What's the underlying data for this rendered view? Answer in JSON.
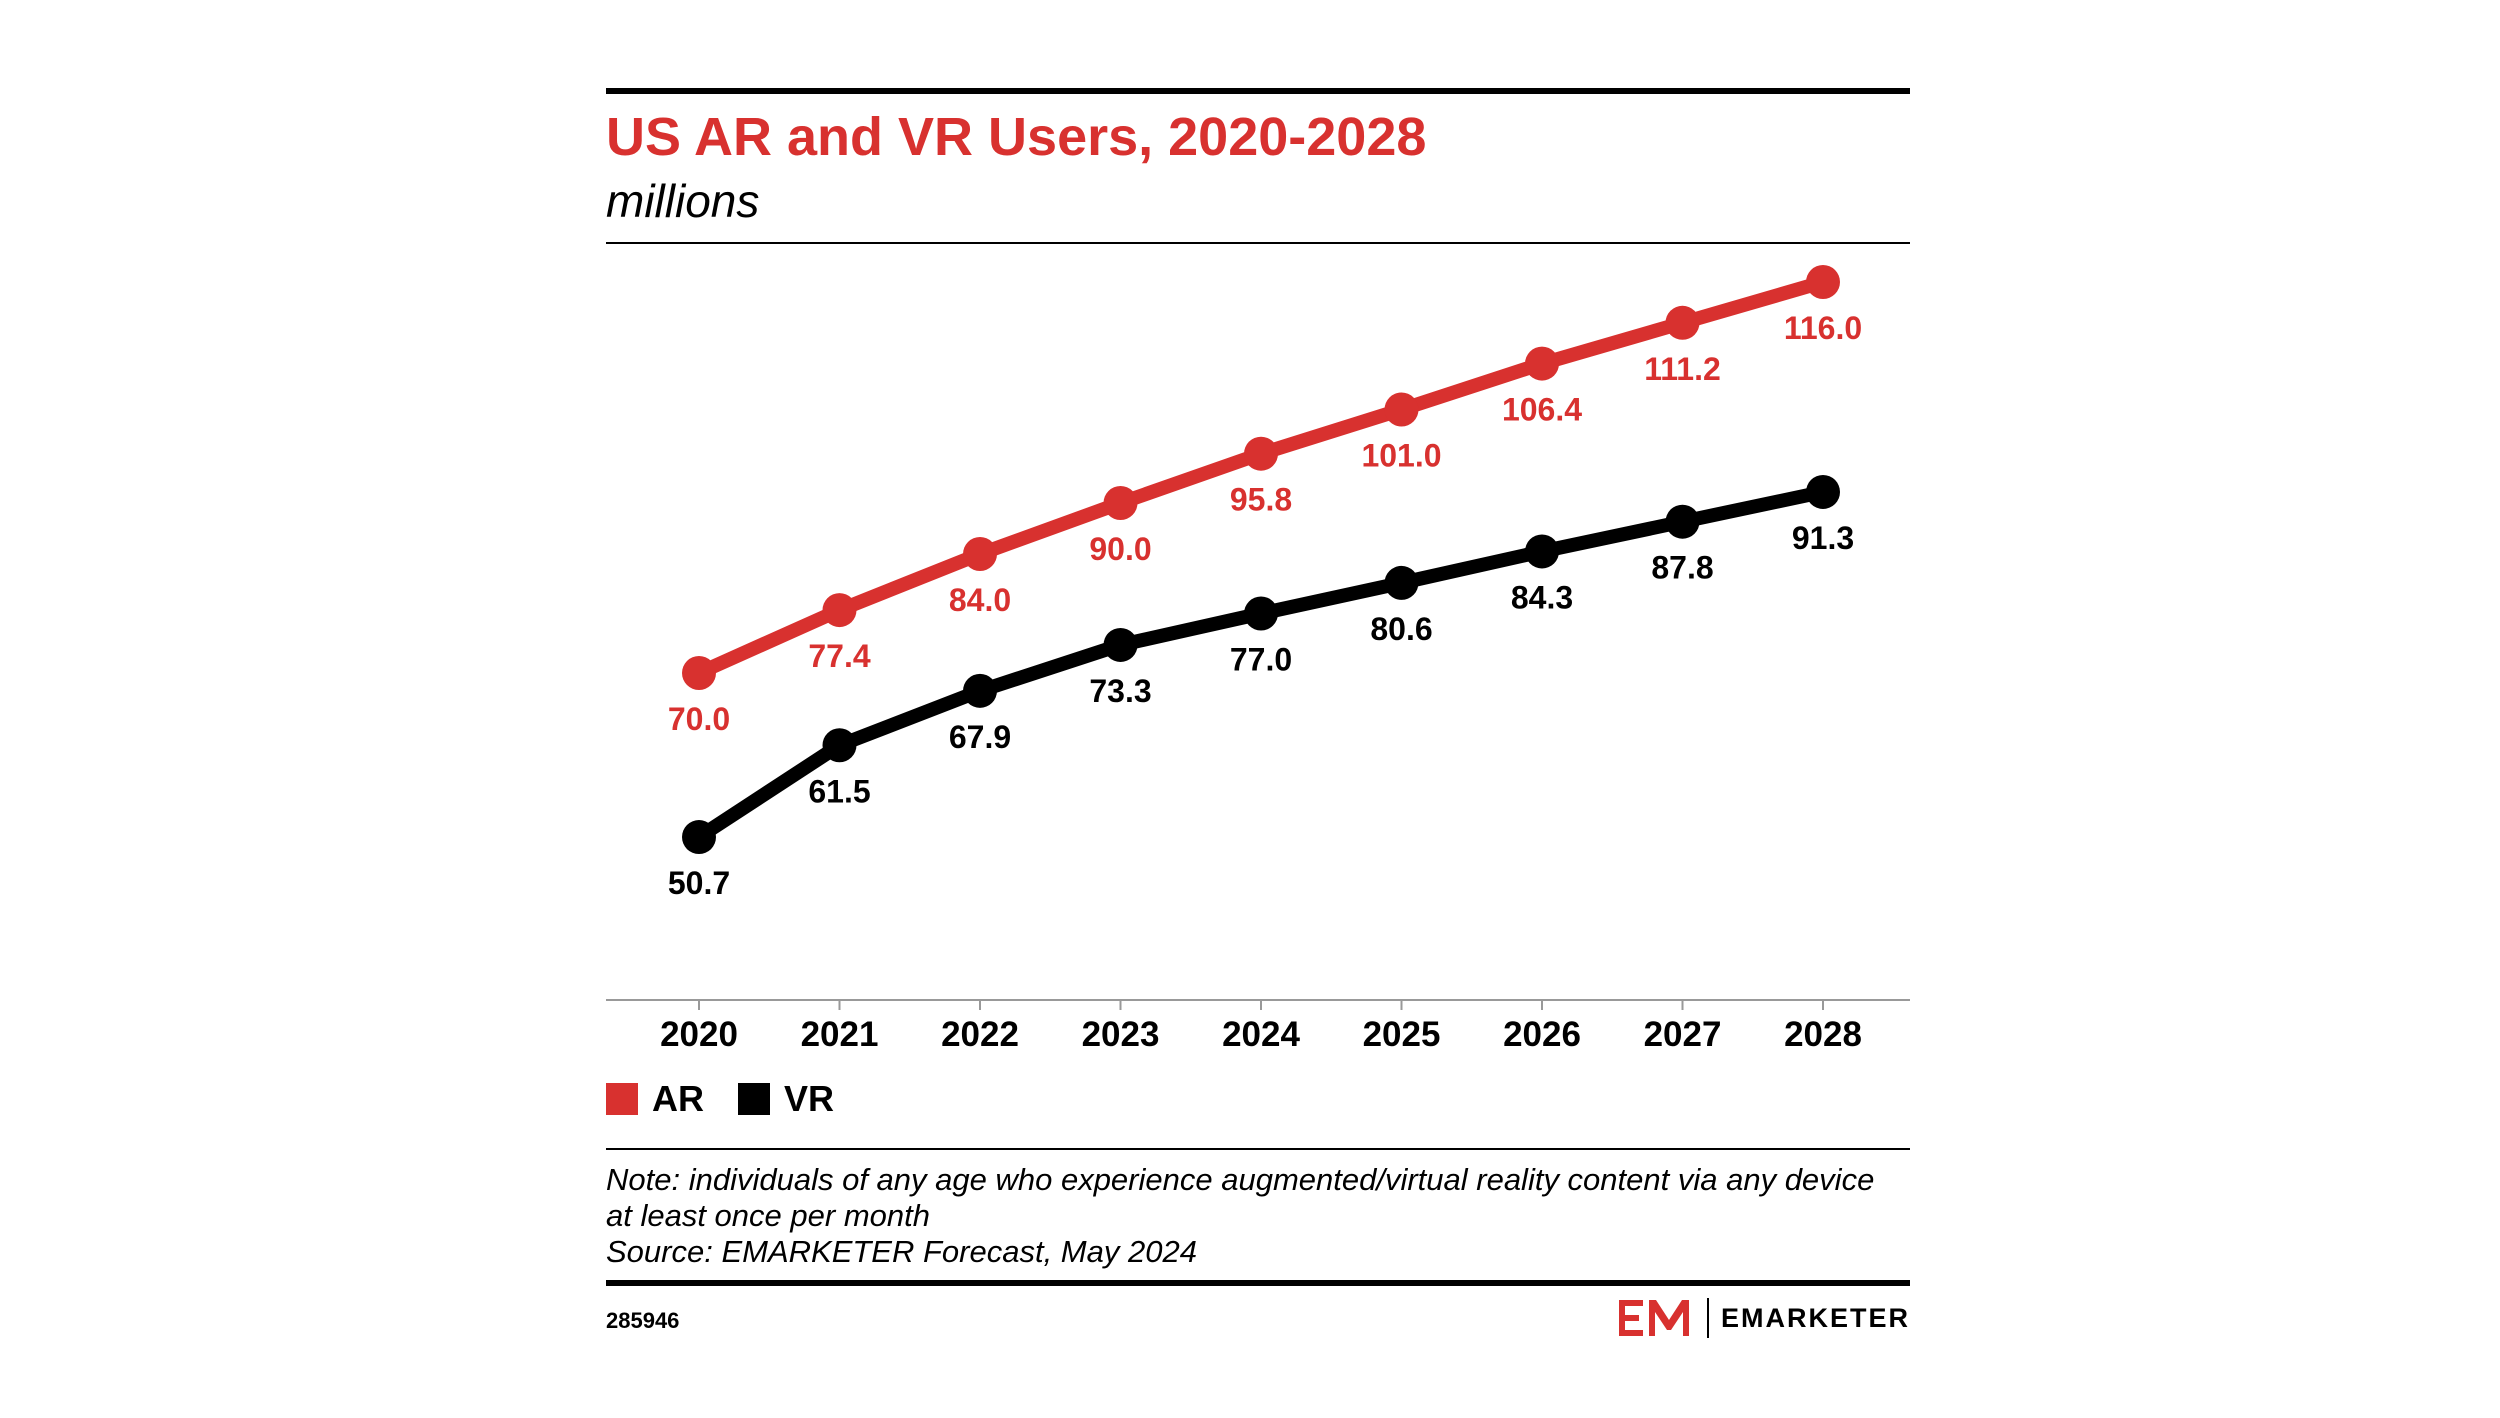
{
  "title": "US AR and VR Users, 2020-2028",
  "subtitle": "millions",
  "note": {
    "line1": "Note: individuals of any age who experience augmented/virtual reality content via any device",
    "line2": "at least once per month",
    "source": "Source: EMARKETER Forecast, May 2024"
  },
  "footer": {
    "chart_id": "285946",
    "brand_name": "EMARKETER",
    "logo_icon": "em-logo-icon"
  },
  "colors": {
    "ar": "#d8312f",
    "vr": "#000000",
    "axis": "#999999"
  },
  "chart_data": {
    "type": "line",
    "title": "US AR and VR Users, 2020-2028",
    "subtitle": "millions",
    "x": [
      "2020",
      "2021",
      "2022",
      "2023",
      "2024",
      "2025",
      "2026",
      "2027",
      "2028"
    ],
    "ylim": [
      40,
      120
    ],
    "grid": false,
    "legend": "bottom-left",
    "series": [
      {
        "name": "AR",
        "color": "#d8312f",
        "values": [
          70.0,
          77.4,
          84.0,
          90.0,
          95.8,
          101.0,
          106.4,
          111.2,
          116.0
        ]
      },
      {
        "name": "VR",
        "color": "#000000",
        "values": [
          50.7,
          61.5,
          67.9,
          73.3,
          77.0,
          80.6,
          84.3,
          87.8,
          91.3
        ]
      }
    ]
  }
}
